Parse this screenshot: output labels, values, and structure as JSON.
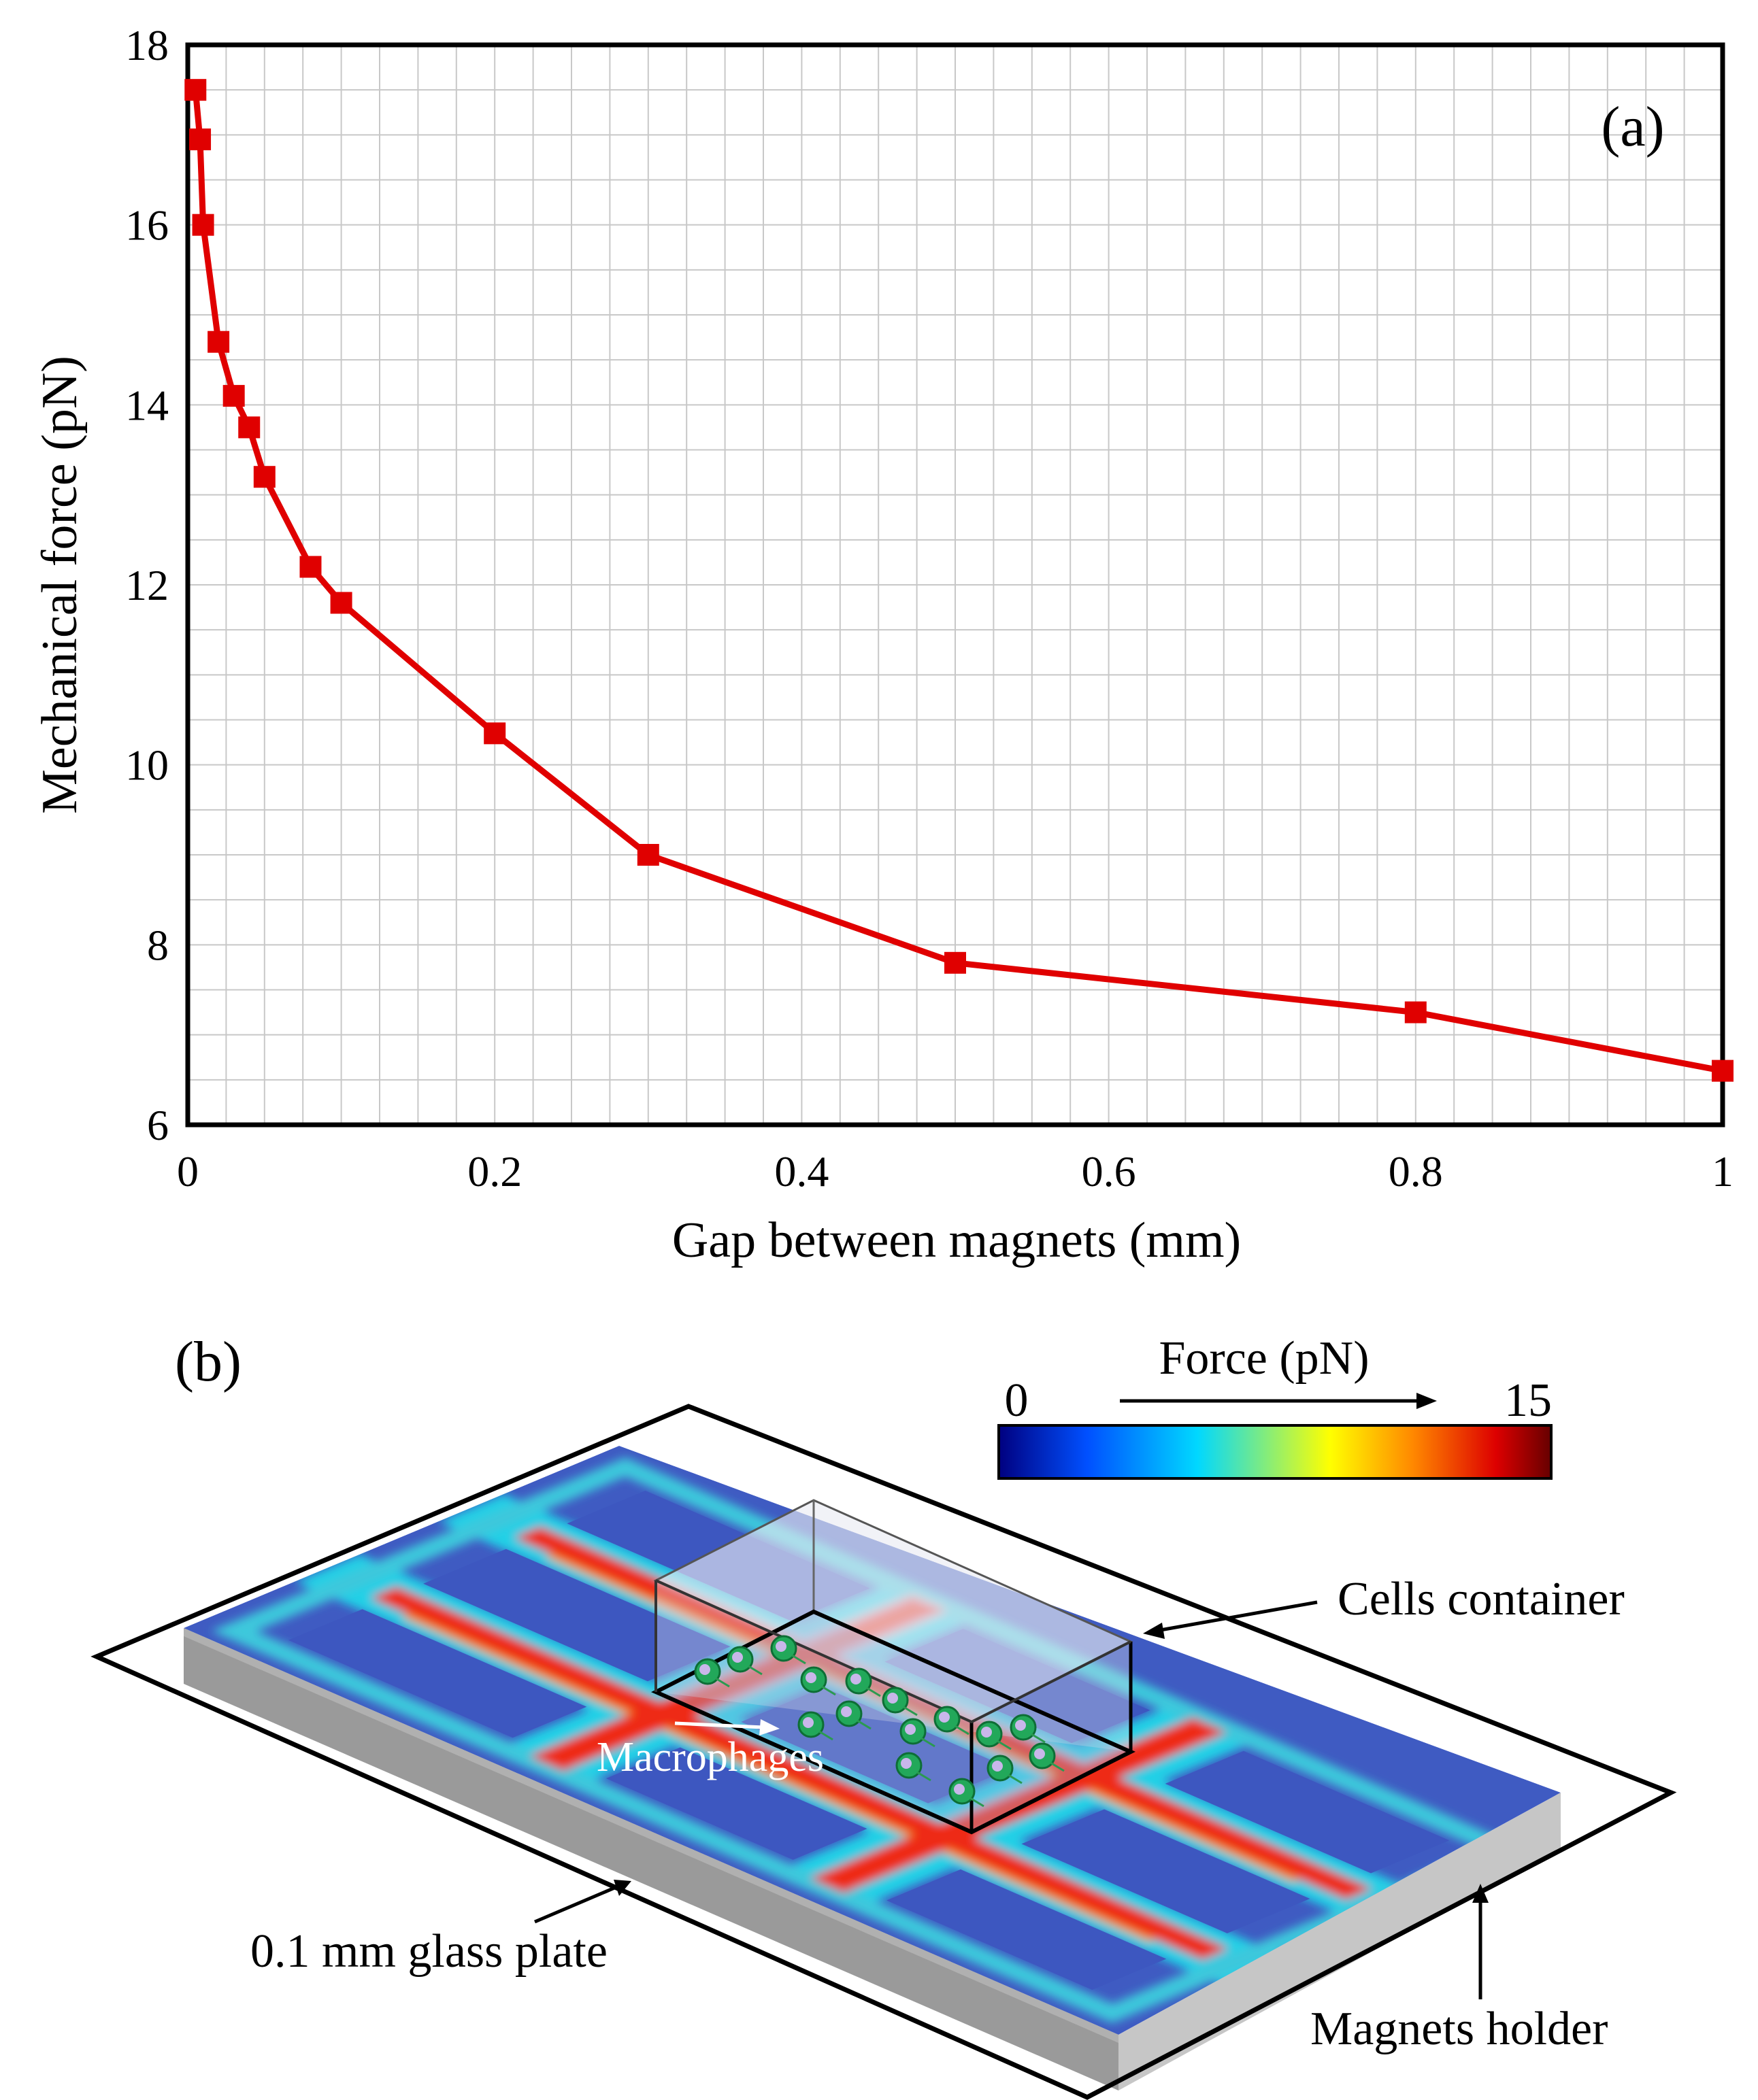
{
  "chart_data": [
    {
      "type": "line",
      "panel_label": "(a)",
      "title": "",
      "xlabel": "Gap between magnets (mm)",
      "ylabel": "Mechanical force (pN)",
      "xlim": [
        0,
        1
      ],
      "ylim": [
        6,
        18
      ],
      "xticks": [
        0,
        0.2,
        0.4,
        0.6,
        0.8,
        1
      ],
      "xtick_labels": [
        "0",
        "0.2",
        "0.4",
        "0.6",
        "0.8",
        "1"
      ],
      "yticks": [
        6,
        8,
        10,
        12,
        14,
        16,
        18
      ],
      "ytick_labels": [
        "6",
        "8",
        "10",
        "12",
        "14",
        "16",
        "18"
      ],
      "grid": true,
      "series": [
        {
          "color": "#e00000",
          "marker": "square",
          "x": [
            0.005,
            0.008,
            0.01,
            0.02,
            0.03,
            0.04,
            0.05,
            0.08,
            0.1,
            0.2,
            0.3,
            0.5,
            0.8,
            1.0
          ],
          "y": [
            17.5,
            16.95,
            16.0,
            14.7,
            14.1,
            13.75,
            13.2,
            12.2,
            11.8,
            10.35,
            9.0,
            7.8,
            7.25,
            6.6
          ]
        }
      ]
    },
    {
      "type": "heatmap",
      "panel_label": "(b)",
      "colorbar": {
        "title": "Force (pN)",
        "min_label": "0",
        "max_label": "15",
        "min": 0,
        "max": 15,
        "colors": [
          "#000080",
          "#0050ff",
          "#00d8ff",
          "#ffff00",
          "#ff8800",
          "#dd0000",
          "#660000"
        ]
      },
      "annotations": {
        "cells_container": "Cells container",
        "macrophages": "Macrophages",
        "glass_plate": "0.1 mm glass plate",
        "magnets_holder": "Magnets holder"
      }
    }
  ]
}
